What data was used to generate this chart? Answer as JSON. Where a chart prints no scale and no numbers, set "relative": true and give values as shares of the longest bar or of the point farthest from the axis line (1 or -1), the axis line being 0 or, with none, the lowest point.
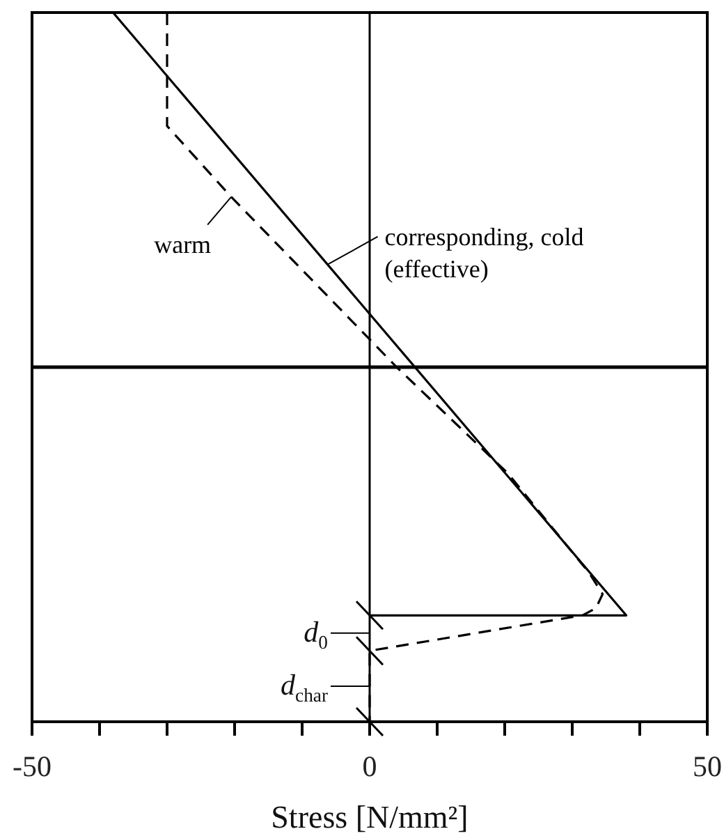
{
  "chart_data": {
    "type": "line",
    "xlabel": "Stress [N/mm²]",
    "relative": true,
    "xlim": [
      -50,
      50
    ],
    "xticks": [
      -50,
      {
        "value": -40,
        "label": null
      },
      {
        "value": -30,
        "label": null
      },
      {
        "value": -20,
        "label": null
      },
      {
        "value": -10,
        "label": null
      },
      0,
      {
        "value": 10,
        "label": null
      },
      {
        "value": 20,
        "label": null
      },
      {
        "value": 30,
        "label": null
      },
      {
        "value": 40,
        "label": null
      },
      50
    ],
    "tick_labels": "x",
    "marker": "none",
    "series": [
      {
        "name": "corresponding, cold (effective)",
        "color": "#000000",
        "line_style": "solid",
        "x": [
          -38,
          38,
          0
        ],
        "values": [
          1,
          0.15,
          0.15
        ]
      },
      {
        "name": "warm",
        "color": "#000000",
        "line_style": "dashed",
        "x": [
          -30,
          -30,
          -20.5,
          4,
          20.5,
          32.5,
          34.5,
          33.5,
          31.5,
          0,
          0
        ],
        "values": [
          1,
          0.84,
          0.74,
          0.5,
          0.35,
          0.21,
          0.18,
          0.16,
          0.15,
          0.1,
          0
        ]
      }
    ],
    "ref_lines": [
      {
        "axis": "x",
        "value": 0,
        "color": "#000000"
      },
      {
        "axis": "y",
        "value": 0.5,
        "color": "#000000"
      }
    ],
    "annotations": [
      {
        "text": "d$_{0}$",
        "x": 0,
        "y": 0.125
      },
      {
        "text": "d$_{char}$",
        "x": 0,
        "y": 0.05
      }
    ]
  }
}
